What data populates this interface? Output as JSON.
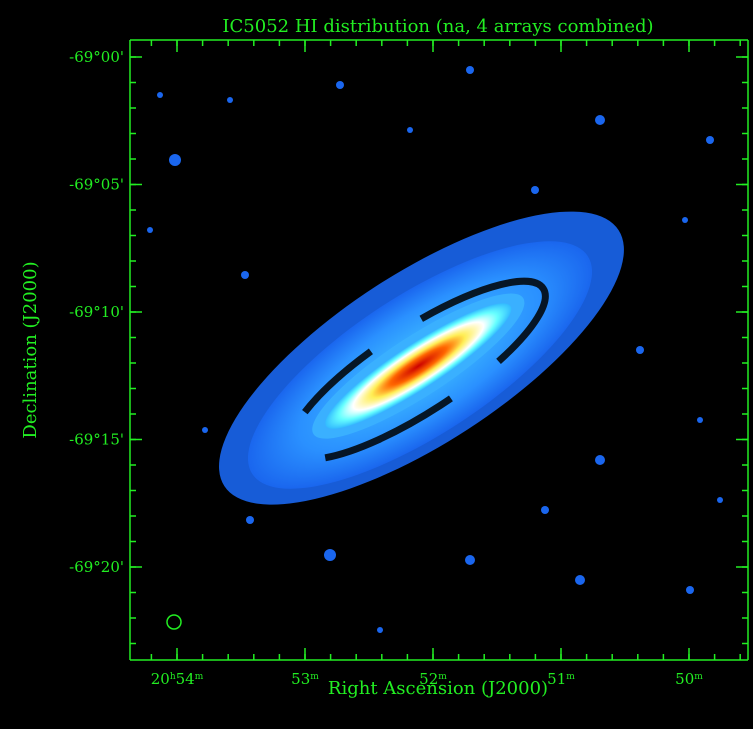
{
  "title": "IC5052   HI distribution (na, 4 arrays combined)",
  "x_axis": {
    "label": "Right Ascension (J2000)",
    "ticks": [
      [
        "20",
        "h",
        "54",
        "m"
      ],
      [
        "53",
        "m"
      ],
      [
        "52",
        "m"
      ],
      [
        "51",
        "m"
      ],
      [
        "50",
        "m"
      ]
    ]
  },
  "y_axis": {
    "label": "Declination (J2000)",
    "ticks": [
      "-69°00'",
      "-69°05'",
      "-69°10'",
      "-69°15'",
      "-69°20'"
    ]
  }
}
